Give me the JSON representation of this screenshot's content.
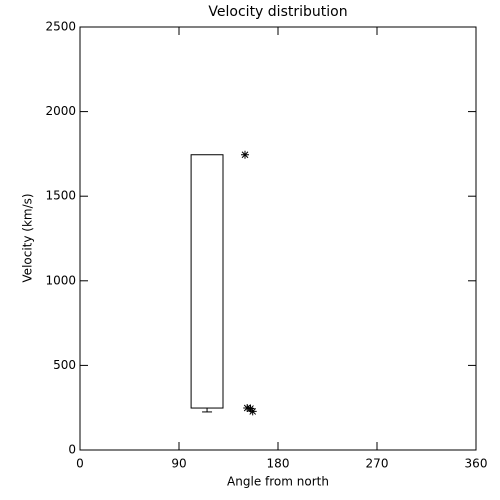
{
  "chart_data": {
    "type": "box",
    "title": "Velocity distribution",
    "xlabel": "Angle from north",
    "ylabel": "Velocity (km/s)",
    "xlim": [
      0,
      360
    ],
    "xticks": [
      0,
      90,
      180,
      270,
      360
    ],
    "ylim": [
      0,
      2500
    ],
    "yticks": [
      0,
      500,
      1000,
      1500,
      2000,
      2500
    ],
    "color": "#000000",
    "box": {
      "x": [
        101,
        130
      ],
      "whisker_low": 225,
      "q1": 248,
      "q3": 1745
    },
    "points": {
      "x": [
        150,
        152,
        155,
        157
      ],
      "y": [
        1745,
        248,
        245,
        228
      ]
    }
  }
}
